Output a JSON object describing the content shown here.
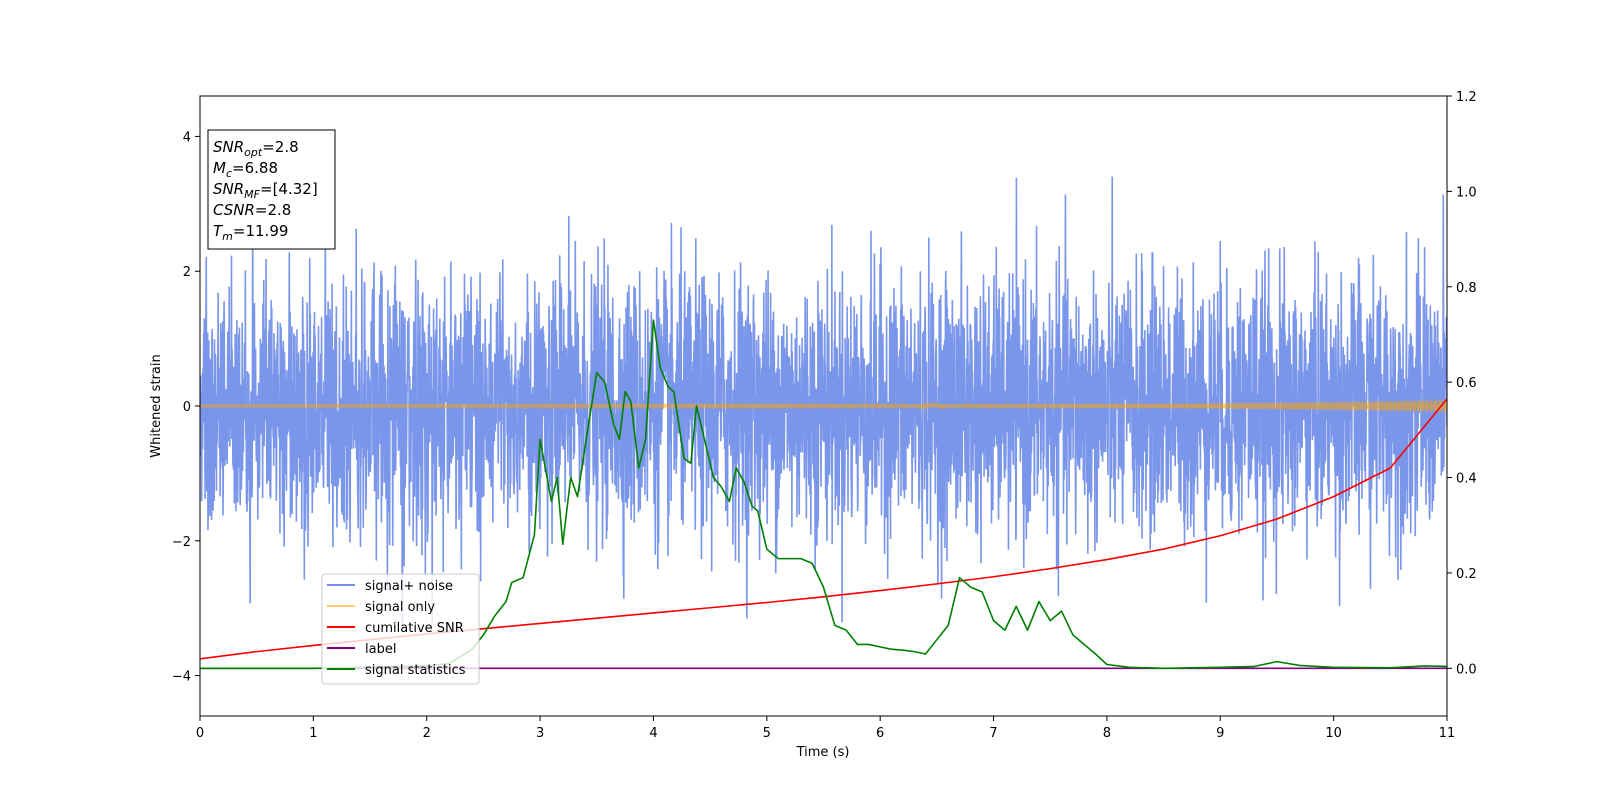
{
  "chart_data": {
    "type": "line",
    "title": "",
    "xlabel": "Time (s)",
    "ylabel": "Whitened strain",
    "xlim": [
      0,
      11
    ],
    "ylim": [
      -4.6,
      4.6
    ],
    "ylim_right": [
      -0.1,
      1.2
    ],
    "xticks": [
      0,
      1,
      2,
      3,
      4,
      5,
      6,
      7,
      8,
      9,
      10,
      11
    ],
    "yticks": [
      -4,
      -2,
      0,
      2,
      4
    ],
    "yticks_right": [
      0.0,
      0.2,
      0.4,
      0.6,
      0.8,
      1.0,
      1.2
    ],
    "ytick_labels_right": [
      "0.0",
      "0.2",
      "0.4",
      "0.6",
      "0.8",
      "1.0",
      "1.2"
    ],
    "grid": false,
    "legend_position": "lower-left",
    "annotation_lines": [
      {
        "base": "SNR",
        "sub": "opt",
        "rest": "=2.8"
      },
      {
        "base": "M",
        "sub": "c",
        "rest": "=6.88"
      },
      {
        "base": "SNR",
        "sub": "MF",
        "rest": "=[4.32]"
      },
      {
        "base": "CSNR",
        "sub": "",
        "rest": "=2.8"
      },
      {
        "base": "T",
        "sub": "m",
        "rest": "=11.99"
      }
    ],
    "series": [
      {
        "name": "signal+ noise",
        "color": "#4169e1",
        "axis": "left",
        "style": "noise",
        "noise_std": 0.95,
        "noise_max": 4.15,
        "noise_min": -4.15
      },
      {
        "name": "signal only",
        "color": "#ffa500",
        "axis": "left",
        "style": "chirp",
        "amplitude_start": 0.02,
        "amplitude_end": 0.1
      },
      {
        "name": "cumilative SNR",
        "color": "#ff0000",
        "axis": "right",
        "style": "line",
        "x": [
          0,
          0.5,
          1,
          1.5,
          2,
          2.5,
          3,
          3.5,
          4,
          4.5,
          5,
          5.5,
          6,
          6.5,
          7,
          7.5,
          8,
          8.5,
          9,
          9.5,
          10,
          10.5,
          11
        ],
        "y": [
          0.02,
          0.035,
          0.048,
          0.06,
          0.072,
          0.083,
          0.094,
          0.105,
          0.116,
          0.127,
          0.138,
          0.15,
          0.163,
          0.177,
          0.192,
          0.209,
          0.228,
          0.25,
          0.278,
          0.313,
          0.36,
          0.42,
          0.565
        ]
      },
      {
        "name": "label",
        "color": "#800080",
        "axis": "right",
        "style": "line",
        "x": [
          0,
          11
        ],
        "y": [
          0.0,
          0.0
        ]
      },
      {
        "name": "signal statistics",
        "color": "#008000",
        "axis": "right",
        "style": "line",
        "x": [
          0,
          1,
          2,
          2.2,
          2.4,
          2.5,
          2.6,
          2.7,
          2.75,
          2.85,
          2.95,
          3.0,
          3.1,
          3.15,
          3.2,
          3.27,
          3.33,
          3.42,
          3.5,
          3.57,
          3.65,
          3.7,
          3.75,
          3.8,
          3.87,
          3.93,
          4.0,
          4.06,
          4.13,
          4.18,
          4.27,
          4.33,
          4.38,
          4.45,
          4.53,
          4.6,
          4.67,
          4.73,
          4.8,
          4.87,
          4.92,
          5.0,
          5.1,
          5.2,
          5.3,
          5.4,
          5.5,
          5.6,
          5.7,
          5.8,
          5.9,
          6.0,
          6.1,
          6.2,
          6.3,
          6.4,
          6.5,
          6.6,
          6.7,
          6.8,
          6.9,
          7.0,
          7.1,
          7.2,
          7.3,
          7.4,
          7.5,
          7.6,
          7.7,
          7.8,
          7.9,
          8.0,
          8.2,
          8.5,
          9.0,
          9.3,
          9.5,
          9.7,
          10.0,
          10.5,
          10.8,
          11.0
        ],
        "y": [
          0.0,
          0.0,
          0.005,
          0.01,
          0.04,
          0.07,
          0.11,
          0.14,
          0.18,
          0.19,
          0.28,
          0.48,
          0.35,
          0.4,
          0.26,
          0.4,
          0.36,
          0.5,
          0.62,
          0.6,
          0.51,
          0.48,
          0.58,
          0.56,
          0.42,
          0.48,
          0.73,
          0.63,
          0.59,
          0.58,
          0.44,
          0.43,
          0.55,
          0.48,
          0.4,
          0.38,
          0.35,
          0.42,
          0.39,
          0.34,
          0.33,
          0.25,
          0.23,
          0.23,
          0.23,
          0.22,
          0.17,
          0.09,
          0.08,
          0.05,
          0.05,
          0.045,
          0.04,
          0.038,
          0.035,
          0.03,
          0.06,
          0.09,
          0.19,
          0.17,
          0.16,
          0.1,
          0.08,
          0.13,
          0.08,
          0.14,
          0.1,
          0.12,
          0.07,
          0.05,
          0.03,
          0.008,
          0.002,
          0.0,
          0.002,
          0.004,
          0.014,
          0.006,
          0.002,
          0.001,
          0.005,
          0.004
        ]
      }
    ]
  }
}
